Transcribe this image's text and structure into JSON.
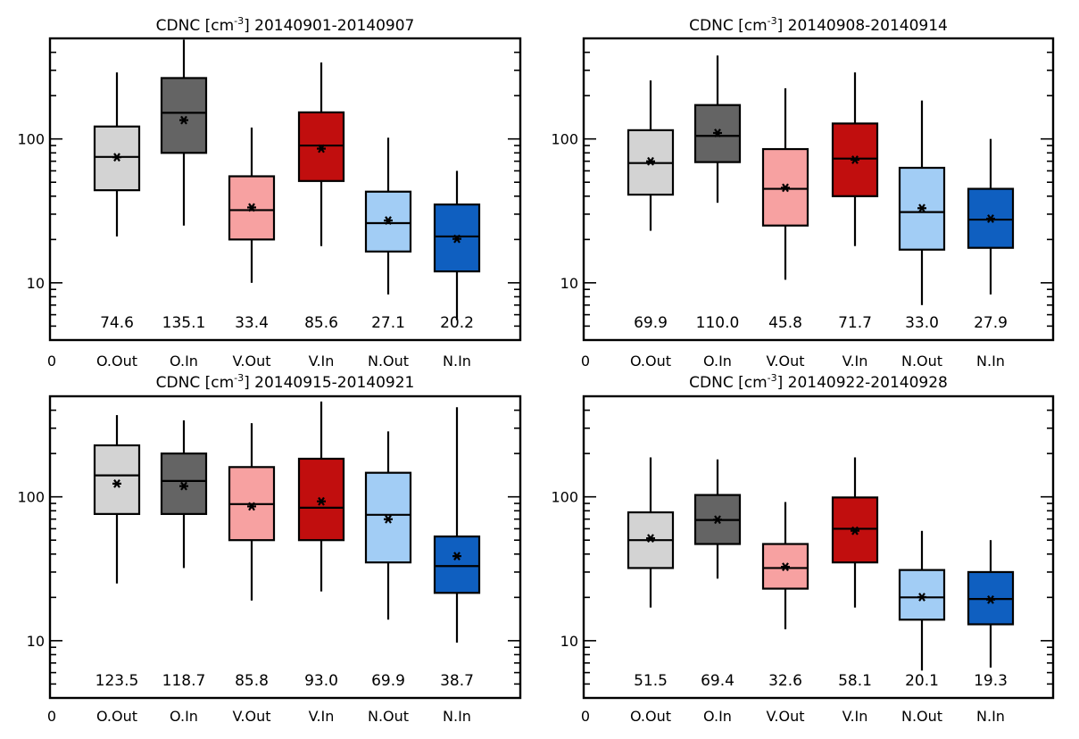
{
  "chart_data": [
    {
      "type": "box",
      "title_prefix": "CDNC [cm",
      "title_exp": "-3",
      "title_suffix": "] 20140901-20140907",
      "categories": [
        "O.Out",
        "O.In",
        "V.Out",
        "V.In",
        "N.Out",
        "N.In"
      ],
      "x_zero_label": "0",
      "y_scale": "log",
      "ylim": [
        4,
        500
      ],
      "yticks": [
        10,
        100
      ],
      "ytick_labels": [
        "10",
        "100"
      ],
      "colors": [
        "#d3d3d3",
        "#646464",
        "#f7a1a1",
        "#c10e0e",
        "#a2cdf5",
        "#0f5fc0"
      ],
      "boxes": [
        {
          "whisker_low": 21,
          "q1": 44,
          "median": 75,
          "q3": 122,
          "whisker_high": 290,
          "mean": 74.6
        },
        {
          "whisker_low": 25,
          "q1": 80,
          "median": 152,
          "q3": 265,
          "whisker_high": 490,
          "mean": 135.1
        },
        {
          "whisker_low": 10,
          "q1": 20,
          "median": 32,
          "q3": 55,
          "whisker_high": 120,
          "mean": 33.4
        },
        {
          "whisker_low": 18,
          "q1": 51,
          "median": 90,
          "q3": 153,
          "whisker_high": 340,
          "mean": 85.6
        },
        {
          "whisker_low": 8.3,
          "q1": 16.5,
          "median": 26,
          "q3": 43,
          "whisker_high": 102,
          "mean": 27.1
        },
        {
          "whisker_low": 5.5,
          "q1": 12,
          "median": 21,
          "q3": 35,
          "whisker_high": 60,
          "mean": 20.2
        }
      ],
      "mean_labels": [
        "74.6",
        "135.1",
        "33.4",
        "85.6",
        "27.1",
        "20.2"
      ]
    },
    {
      "type": "box",
      "title_prefix": "CDNC [cm",
      "title_exp": "-3",
      "title_suffix": "] 20140908-20140914",
      "categories": [
        "O.Out",
        "O.In",
        "V.Out",
        "V.In",
        "N.Out",
        "N.In"
      ],
      "x_zero_label": "0",
      "y_scale": "log",
      "ylim": [
        4,
        500
      ],
      "yticks": [
        10,
        100
      ],
      "ytick_labels": [
        "10",
        "100"
      ],
      "colors": [
        "#d3d3d3",
        "#646464",
        "#f7a1a1",
        "#c10e0e",
        "#a2cdf5",
        "#0f5fc0"
      ],
      "boxes": [
        {
          "whisker_low": 23,
          "q1": 41,
          "median": 68,
          "q3": 115,
          "whisker_high": 255,
          "mean": 69.9
        },
        {
          "whisker_low": 36,
          "q1": 69,
          "median": 105,
          "q3": 172,
          "whisker_high": 380,
          "mean": 110.0
        },
        {
          "whisker_low": 10.5,
          "q1": 25,
          "median": 45,
          "q3": 85,
          "whisker_high": 225,
          "mean": 45.8
        },
        {
          "whisker_low": 18,
          "q1": 40,
          "median": 73,
          "q3": 128,
          "whisker_high": 290,
          "mean": 71.7
        },
        {
          "whisker_low": 7,
          "q1": 17,
          "median": 31,
          "q3": 63,
          "whisker_high": 185,
          "mean": 33.0
        },
        {
          "whisker_low": 8.3,
          "q1": 17.5,
          "median": 27.5,
          "q3": 45,
          "whisker_high": 100,
          "mean": 27.9
        }
      ],
      "mean_labels": [
        "69.9",
        "110.0",
        "45.8",
        "71.7",
        "33.0",
        "27.9"
      ]
    },
    {
      "type": "box",
      "title_prefix": "CDNC [cm",
      "title_exp": "-3",
      "title_suffix": "] 20140915-20140921",
      "categories": [
        "O.Out",
        "O.In",
        "V.Out",
        "V.In",
        "N.Out",
        "N.In"
      ],
      "x_zero_label": "0",
      "y_scale": "log",
      "ylim": [
        4,
        500
      ],
      "yticks": [
        10,
        100
      ],
      "ytick_labels": [
        "10",
        "100"
      ],
      "colors": [
        "#d3d3d3",
        "#646464",
        "#f7a1a1",
        "#c10e0e",
        "#a2cdf5",
        "#0f5fc0"
      ],
      "boxes": [
        {
          "whisker_low": 25,
          "q1": 76,
          "median": 141,
          "q3": 228,
          "whisker_high": 370,
          "mean": 123.5
        },
        {
          "whisker_low": 32,
          "q1": 76,
          "median": 129,
          "q3": 200,
          "whisker_high": 340,
          "mean": 118.7
        },
        {
          "whisker_low": 19,
          "q1": 50,
          "median": 89,
          "q3": 161,
          "whisker_high": 325,
          "mean": 85.8
        },
        {
          "whisker_low": 22,
          "q1": 50,
          "median": 84,
          "q3": 184,
          "whisker_high": 460,
          "mean": 93.0
        },
        {
          "whisker_low": 14,
          "q1": 35,
          "median": 75,
          "q3": 147,
          "whisker_high": 285,
          "mean": 69.9
        },
        {
          "whisker_low": 9.7,
          "q1": 21.5,
          "median": 33,
          "q3": 53,
          "whisker_high": 420,
          "mean": 38.7
        }
      ],
      "mean_labels": [
        "123.5",
        "118.7",
        "85.8",
        "93.0",
        "69.9",
        "38.7"
      ]
    },
    {
      "type": "box",
      "title_prefix": "CDNC [cm",
      "title_exp": "-3",
      "title_suffix": "] 20140922-20140928",
      "categories": [
        "O.Out",
        "O.In",
        "V.Out",
        "V.In",
        "N.Out",
        "N.In"
      ],
      "x_zero_label": "0",
      "y_scale": "log",
      "ylim": [
        4,
        500
      ],
      "yticks": [
        10,
        100
      ],
      "ytick_labels": [
        "10",
        "100"
      ],
      "colors": [
        "#d3d3d3",
        "#646464",
        "#f7a1a1",
        "#c10e0e",
        "#a2cdf5",
        "#0f5fc0"
      ],
      "boxes": [
        {
          "whisker_low": 17,
          "q1": 32,
          "median": 50,
          "q3": 78,
          "whisker_high": 188,
          "mean": 51.5
        },
        {
          "whisker_low": 27,
          "q1": 47,
          "median": 69,
          "q3": 103,
          "whisker_high": 182,
          "mean": 69.4
        },
        {
          "whisker_low": 12,
          "q1": 23,
          "median": 32,
          "q3": 47,
          "whisker_high": 92,
          "mean": 32.6
        },
        {
          "whisker_low": 17,
          "q1": 35,
          "median": 60,
          "q3": 99,
          "whisker_high": 188,
          "mean": 58.1
        },
        {
          "whisker_low": 6.2,
          "q1": 14,
          "median": 20,
          "q3": 31,
          "whisker_high": 58,
          "mean": 20.1
        },
        {
          "whisker_low": 6.5,
          "q1": 13,
          "median": 19.5,
          "q3": 30,
          "whisker_high": 50,
          "mean": 19.3
        }
      ],
      "mean_labels": [
        "51.5",
        "69.4",
        "32.6",
        "58.1",
        "20.1",
        "19.3"
      ]
    }
  ]
}
